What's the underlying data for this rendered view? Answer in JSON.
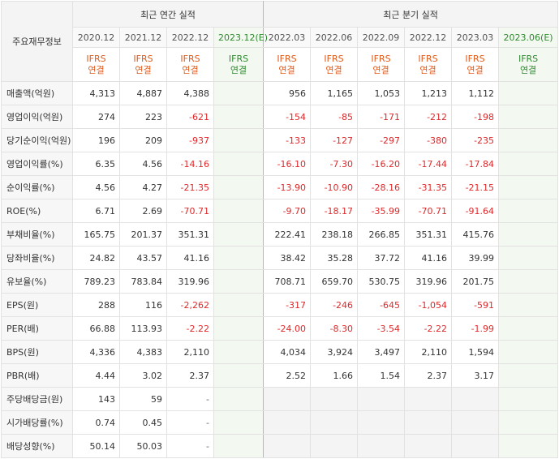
{
  "header": {
    "corner_label": "주요재무정보",
    "annual_title": "최근 연간 실적",
    "quarter_title": "최근 분기 실적",
    "annual_periods": [
      "2020.12",
      "2021.12",
      "2022.12",
      "2023.12(E)"
    ],
    "quarter_periods": [
      "2022.03",
      "2022.06",
      "2022.09",
      "2022.12",
      "2023.03",
      "2023.06(E)"
    ],
    "ifrs_line1": "IFRS",
    "ifrs_line2": "연결"
  },
  "rows": [
    {
      "label": "매출액(억원)",
      "annual": [
        "4,313",
        "4,887",
        "4,388",
        ""
      ],
      "quarter": [
        "956",
        "1,165",
        "1,053",
        "1,213",
        "1,112",
        ""
      ]
    },
    {
      "label": "영업이익(억원)",
      "annual": [
        "274",
        "223",
        "-621",
        ""
      ],
      "quarter": [
        "-154",
        "-85",
        "-171",
        "-212",
        "-198",
        ""
      ]
    },
    {
      "label": "당기순이익(억원)",
      "annual": [
        "196",
        "209",
        "-937",
        ""
      ],
      "quarter": [
        "-133",
        "-127",
        "-297",
        "-380",
        "-235",
        ""
      ]
    },
    {
      "label": "영업이익률(%)",
      "annual": [
        "6.35",
        "4.56",
        "-14.16",
        ""
      ],
      "quarter": [
        "-16.10",
        "-7.30",
        "-16.20",
        "-17.44",
        "-17.84",
        ""
      ]
    },
    {
      "label": "순이익률(%)",
      "annual": [
        "4.56",
        "4.27",
        "-21.35",
        ""
      ],
      "quarter": [
        "-13.90",
        "-10.90",
        "-28.16",
        "-31.35",
        "-21.15",
        ""
      ]
    },
    {
      "label": "ROE(%)",
      "annual": [
        "6.71",
        "2.69",
        "-70.71",
        ""
      ],
      "quarter": [
        "-9.70",
        "-18.17",
        "-35.99",
        "-70.71",
        "-91.64",
        ""
      ]
    },
    {
      "label": "부채비율(%)",
      "annual": [
        "165.75",
        "201.37",
        "351.31",
        ""
      ],
      "quarter": [
        "222.41",
        "238.18",
        "266.85",
        "351.31",
        "415.76",
        ""
      ]
    },
    {
      "label": "당좌비율(%)",
      "annual": [
        "24.82",
        "43.57",
        "41.16",
        ""
      ],
      "quarter": [
        "38.42",
        "35.28",
        "37.72",
        "41.16",
        "39.99",
        ""
      ]
    },
    {
      "label": "유보율(%)",
      "annual": [
        "789.23",
        "783.84",
        "319.96",
        ""
      ],
      "quarter": [
        "708.71",
        "659.70",
        "530.75",
        "319.96",
        "201.75",
        ""
      ]
    },
    {
      "label": "EPS(원)",
      "annual": [
        "288",
        "116",
        "-2,262",
        ""
      ],
      "quarter": [
        "-317",
        "-246",
        "-645",
        "-1,054",
        "-591",
        ""
      ]
    },
    {
      "label": "PER(배)",
      "annual": [
        "66.88",
        "113.93",
        "-2.22",
        ""
      ],
      "quarter": [
        "-24.00",
        "-8.30",
        "-3.54",
        "-2.22",
        "-1.99",
        ""
      ]
    },
    {
      "label": "BPS(원)",
      "annual": [
        "4,336",
        "4,383",
        "2,110",
        ""
      ],
      "quarter": [
        "4,034",
        "3,924",
        "3,497",
        "2,110",
        "1,594",
        ""
      ]
    },
    {
      "label": "PBR(배)",
      "annual": [
        "4.44",
        "3.02",
        "2.37",
        ""
      ],
      "quarter": [
        "2.52",
        "1.66",
        "1.54",
        "2.37",
        "3.17",
        ""
      ]
    },
    {
      "label": "주당배당금(원)",
      "annual": [
        "143",
        "59",
        "-",
        ""
      ],
      "quarter": [
        "",
        "",
        "",
        "",
        "",
        ""
      ]
    },
    {
      "label": "시가배당률(%)",
      "annual": [
        "0.74",
        "0.45",
        "-",
        ""
      ],
      "quarter": [
        "",
        "",
        "",
        "",
        "",
        ""
      ]
    },
    {
      "label": "배당성향(%)",
      "annual": [
        "50.14",
        "50.03",
        "-",
        ""
      ],
      "quarter": [
        "",
        "",
        "",
        "",
        "",
        ""
      ]
    }
  ]
}
